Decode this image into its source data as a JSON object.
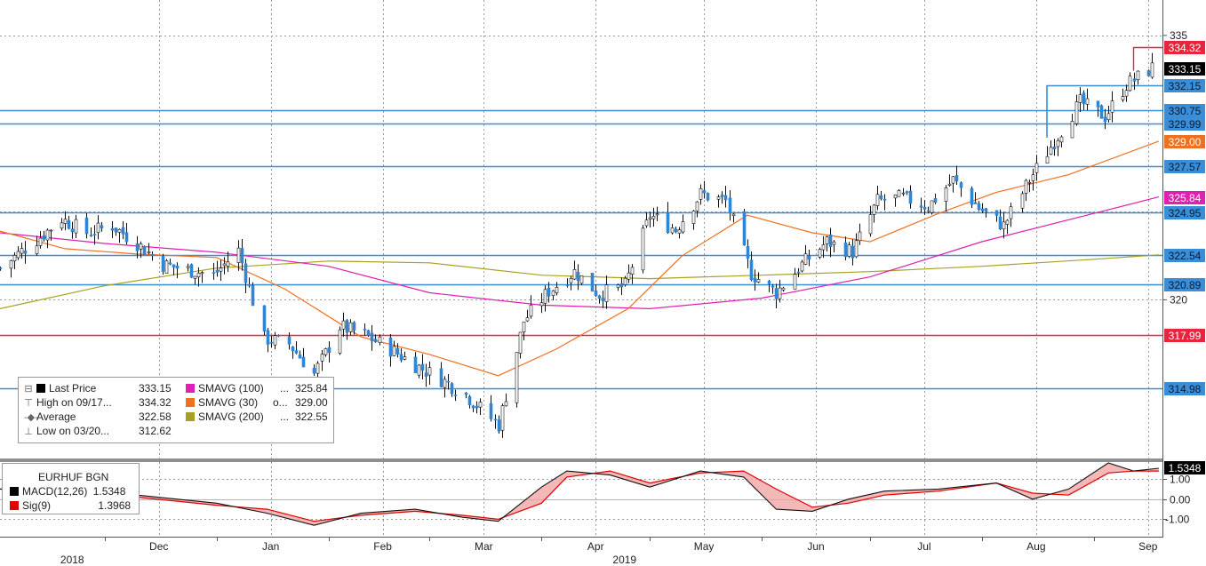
{
  "legend": {
    "main": [
      {
        "label": "Last Price",
        "value": "333.15",
        "color": "#000000"
      },
      {
        "label": "High on 09/17...",
        "value": "334.32"
      },
      {
        "label": "Average",
        "value": "322.58"
      },
      {
        "label": "Low on 03/20...",
        "value": "312.62"
      }
    ],
    "sma": [
      {
        "label": "SMAVG (100)",
        "dots": "...",
        "value": "325.84",
        "color": "#e020b0"
      },
      {
        "label": "SMAVG (30)",
        "dots": "o...",
        "value": "329.00",
        "color": "#f07020"
      },
      {
        "label": "SMAVG (200)",
        "dots": "...",
        "value": "322.55",
        "color": "#a8a020"
      }
    ]
  },
  "macd_legend": {
    "title": "EURHUF BGN",
    "items": [
      {
        "label": "MACD(12,26)",
        "value": "1.5348",
        "color": "#000000"
      },
      {
        "label": "Sig(9)",
        "value": "1.3968",
        "color": "#e00000"
      }
    ]
  },
  "chart_data": [
    {
      "type": "candlestick",
      "series_name": "EURHUF BGN",
      "x_ticks": [
        {
          "label": "Dec",
          "x_date": "2018-12-01"
        },
        {
          "label": "Jan",
          "x_date": "2019-01-01"
        },
        {
          "label": "Feb",
          "x_date": "2019-02-01"
        },
        {
          "label": "Mar",
          "x_date": "2019-03-01"
        },
        {
          "label": "Apr",
          "x_date": "2019-04-01"
        },
        {
          "label": "May",
          "x_date": "2019-05-01"
        },
        {
          "label": "Jun",
          "x_date": "2019-06-01"
        },
        {
          "label": "Jul",
          "x_date": "2019-07-01"
        },
        {
          "label": "Aug",
          "x_date": "2019-08-01"
        },
        {
          "label": "Sep",
          "x_date": "2019-09-01"
        }
      ],
      "year_labels": [
        "2018",
        "2019"
      ],
      "x_range": [
        "2018-11-02",
        "2019-09-20"
      ],
      "y_range": [
        311.0,
        336.0
      ],
      "y_ticks": [
        320,
        335
      ],
      "grid": true,
      "price_path": [
        [
          "2018-11-02",
          321.8
        ],
        [
          "2018-11-12",
          323.4
        ],
        [
          "2018-11-19",
          324.6
        ],
        [
          "2018-11-26",
          323.8
        ],
        [
          "2018-12-03",
          324.2
        ],
        [
          "2018-12-10",
          323.2
        ],
        [
          "2018-12-17",
          322.0
        ],
        [
          "2018-12-24",
          321.7
        ],
        [
          "2018-12-31",
          321.4
        ],
        [
          "2019-01-07",
          322.8
        ],
        [
          "2019-01-14",
          317.8
        ],
        [
          "2019-01-21",
          317.5
        ],
        [
          "2019-01-28",
          315.8
        ],
        [
          "2019-02-04",
          318.5
        ],
        [
          "2019-02-11",
          318.0
        ],
        [
          "2019-02-18",
          317.2
        ],
        [
          "2019-02-25",
          316.3
        ],
        [
          "2019-03-04",
          315.5
        ],
        [
          "2019-03-11",
          314.6
        ],
        [
          "2019-03-20",
          312.9
        ],
        [
          "2019-03-27",
          318.8
        ],
        [
          "2019-04-03",
          320.5
        ],
        [
          "2019-04-10",
          321.6
        ],
        [
          "2019-04-17",
          320.3
        ],
        [
          "2019-04-24",
          320.8
        ],
        [
          "2019-05-01",
          324.8
        ],
        [
          "2019-05-08",
          324.0
        ],
        [
          "2019-05-15",
          326.0
        ],
        [
          "2019-05-22",
          325.6
        ],
        [
          "2019-05-29",
          321.5
        ],
        [
          "2019-06-05",
          320.4
        ],
        [
          "2019-06-12",
          322.0
        ],
        [
          "2019-06-19",
          323.3
        ],
        [
          "2019-06-26",
          322.7
        ],
        [
          "2019-07-03",
          325.6
        ],
        [
          "2019-07-10",
          325.8
        ],
        [
          "2019-07-17",
          325.3
        ],
        [
          "2019-07-24",
          326.8
        ],
        [
          "2019-07-31",
          325.2
        ],
        [
          "2019-08-07",
          324.2
        ],
        [
          "2019-08-14",
          326.8
        ],
        [
          "2019-08-21",
          329.0
        ],
        [
          "2019-08-28",
          331.2
        ],
        [
          "2019-09-04",
          330.4
        ],
        [
          "2019-09-10",
          332.2
        ],
        [
          "2019-09-17",
          333.15
        ]
      ],
      "sma_30": [
        [
          "2018-11-02",
          323.9
        ],
        [
          "2018-11-20",
          322.9
        ],
        [
          "2018-12-10",
          322.6
        ],
        [
          "2019-01-01",
          322.4
        ],
        [
          "2019-01-20",
          320.6
        ],
        [
          "2019-02-10",
          317.9
        ],
        [
          "2019-03-01",
          316.9
        ],
        [
          "2019-03-20",
          315.7
        ],
        [
          "2019-04-05",
          317.2
        ],
        [
          "2019-04-25",
          319.5
        ],
        [
          "2019-05-10",
          322.5
        ],
        [
          "2019-05-28",
          324.8
        ],
        [
          "2019-06-15",
          323.8
        ],
        [
          "2019-07-01",
          323.3
        ],
        [
          "2019-07-20",
          324.9
        ],
        [
          "2019-08-05",
          326.1
        ],
        [
          "2019-08-25",
          327.1
        ],
        [
          "2019-09-19",
          329.0
        ]
      ],
      "sma_100": [
        [
          "2018-11-02",
          323.8
        ],
        [
          "2018-12-01",
          323.2
        ],
        [
          "2019-01-01",
          322.7
        ],
        [
          "2019-02-01",
          321.9
        ],
        [
          "2019-03-01",
          320.4
        ],
        [
          "2019-04-01",
          319.7
        ],
        [
          "2019-05-01",
          319.5
        ],
        [
          "2019-06-01",
          320.1
        ],
        [
          "2019-07-01",
          321.3
        ],
        [
          "2019-08-01",
          323.3
        ],
        [
          "2019-09-01",
          324.9
        ],
        [
          "2019-09-19",
          325.84
        ]
      ],
      "sma_200": [
        [
          "2018-11-02",
          319.5
        ],
        [
          "2018-12-01",
          320.8
        ],
        [
          "2019-01-01",
          321.8
        ],
        [
          "2019-02-01",
          322.2
        ],
        [
          "2019-03-01",
          322.1
        ],
        [
          "2019-04-01",
          321.4
        ],
        [
          "2019-05-01",
          321.2
        ],
        [
          "2019-06-01",
          321.4
        ],
        [
          "2019-07-01",
          321.6
        ],
        [
          "2019-08-01",
          321.9
        ],
        [
          "2019-09-01",
          322.3
        ],
        [
          "2019-09-19",
          322.55
        ]
      ],
      "horizontal_levels": [
        {
          "value": 334.32,
          "label": "334.32",
          "color": "#e8253c",
          "style": "tag"
        },
        {
          "value": 333.15,
          "label": "333.15",
          "color": "#000000",
          "style": "tag"
        },
        {
          "value": 332.15,
          "label": "332.15",
          "color": "#3a8ed8",
          "style": "segment"
        },
        {
          "value": 330.75,
          "label": "330.75",
          "color": "#3a8ed8",
          "style": "line"
        },
        {
          "value": 329.99,
          "label": "329.99",
          "color": "#3a8ed8",
          "style": "line"
        },
        {
          "value": 329.0,
          "label": "329.00",
          "color": "#f07020",
          "style": "tag"
        },
        {
          "value": 327.57,
          "label": "327.57",
          "color": "#3a8ed8",
          "style": "line"
        },
        {
          "value": 325.84,
          "label": "325.84",
          "color": "#e020b0",
          "style": "tag"
        },
        {
          "value": 324.95,
          "label": "324.95",
          "color": "#3a8ed8",
          "style": "line"
        },
        {
          "value": 322.54,
          "label": "322.54",
          "color": "#3a8ed8",
          "style": "line"
        },
        {
          "value": 320.89,
          "label": "320.89",
          "color": "#3a8ed8",
          "style": "line"
        },
        {
          "value": 317.99,
          "label": "317.99",
          "color": "#e8253c",
          "style": "line"
        },
        {
          "value": 314.98,
          "label": "314.98",
          "color": "#3a8ed8",
          "style": "line"
        }
      ]
    },
    {
      "type": "line",
      "series_names": [
        "MACD(12,26)",
        "Sig(9)"
      ],
      "y_range": [
        -1.6,
        1.8
      ],
      "y_ticks": [
        {
          "value": 1.0,
          "label": "1.00"
        },
        {
          "value": 0.0,
          "label": "0.00"
        },
        {
          "value": -1.0,
          "label": "-1.00"
        }
      ],
      "last_value_tag": {
        "value": 1.5348,
        "label": "1.5348"
      },
      "macd": [
        [
          "2018-11-02",
          0.5
        ],
        [
          "2018-11-20",
          0.3
        ],
        [
          "2018-12-10",
          0.2
        ],
        [
          "2019-01-01",
          -0.2
        ],
        [
          "2019-01-15",
          -0.7
        ],
        [
          "2019-01-28",
          -1.3
        ],
        [
          "2019-02-10",
          -0.7
        ],
        [
          "2019-02-25",
          -0.5
        ],
        [
          "2019-03-10",
          -0.9
        ],
        [
          "2019-03-20",
          -1.1
        ],
        [
          "2019-04-01",
          0.6
        ],
        [
          "2019-04-08",
          1.4
        ],
        [
          "2019-04-20",
          1.2
        ],
        [
          "2019-05-01",
          0.6
        ],
        [
          "2019-05-15",
          1.4
        ],
        [
          "2019-05-27",
          1.1
        ],
        [
          "2019-06-05",
          -0.5
        ],
        [
          "2019-06-15",
          -0.6
        ],
        [
          "2019-06-25",
          0.0
        ],
        [
          "2019-07-05",
          0.4
        ],
        [
          "2019-07-20",
          0.5
        ],
        [
          "2019-08-05",
          0.8
        ],
        [
          "2019-08-15",
          0.0
        ],
        [
          "2019-08-25",
          0.5
        ],
        [
          "2019-09-05",
          1.8
        ],
        [
          "2019-09-12",
          1.4
        ],
        [
          "2019-09-19",
          1.5348
        ]
      ],
      "signal": [
        [
          "2018-11-02",
          0.5
        ],
        [
          "2018-11-20",
          0.3
        ],
        [
          "2018-12-10",
          0.1
        ],
        [
          "2019-01-01",
          -0.3
        ],
        [
          "2019-01-15",
          -0.5
        ],
        [
          "2019-01-28",
          -1.1
        ],
        [
          "2019-02-10",
          -0.8
        ],
        [
          "2019-02-25",
          -0.6
        ],
        [
          "2019-03-10",
          -0.8
        ],
        [
          "2019-03-20",
          -1.0
        ],
        [
          "2019-04-01",
          -0.2
        ],
        [
          "2019-04-08",
          1.1
        ],
        [
          "2019-04-20",
          1.4
        ],
        [
          "2019-05-01",
          0.8
        ],
        [
          "2019-05-15",
          1.3
        ],
        [
          "2019-05-27",
          1.4
        ],
        [
          "2019-06-05",
          0.5
        ],
        [
          "2019-06-15",
          -0.4
        ],
        [
          "2019-06-25",
          -0.2
        ],
        [
          "2019-07-05",
          0.2
        ],
        [
          "2019-07-20",
          0.4
        ],
        [
          "2019-08-05",
          0.8
        ],
        [
          "2019-08-15",
          0.3
        ],
        [
          "2019-08-25",
          0.2
        ],
        [
          "2019-09-05",
          1.3
        ],
        [
          "2019-09-12",
          1.4
        ],
        [
          "2019-09-19",
          1.3968
        ]
      ]
    }
  ]
}
